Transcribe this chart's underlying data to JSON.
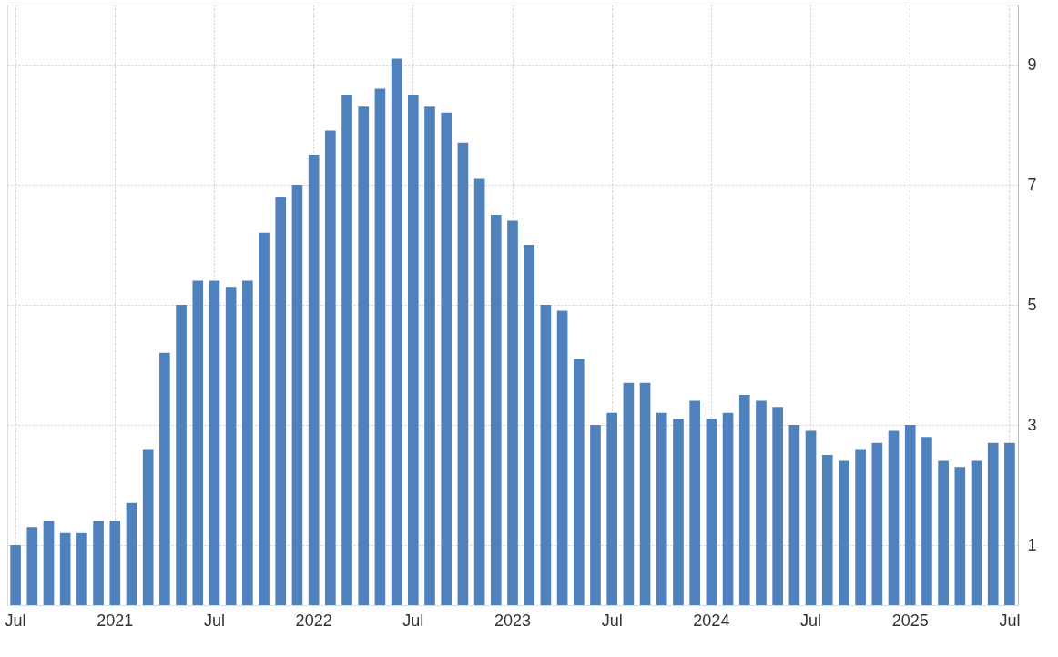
{
  "chart_data": {
    "type": "bar",
    "categories": [
      "Jul",
      null,
      null,
      null,
      null,
      null,
      "2021",
      null,
      null,
      null,
      null,
      null,
      "Jul",
      null,
      null,
      null,
      null,
      null,
      "2022",
      null,
      null,
      null,
      null,
      null,
      "Jul",
      null,
      null,
      null,
      null,
      null,
      "2023",
      null,
      null,
      null,
      null,
      null,
      "Jul",
      null,
      null,
      null,
      null,
      null,
      "2024",
      null,
      null,
      null,
      null,
      null,
      "Jul",
      null,
      null,
      null,
      null,
      null,
      "2025",
      null,
      null,
      null,
      null,
      null,
      "Jul"
    ],
    "values": [
      1.0,
      1.3,
      1.4,
      1.2,
      1.2,
      1.4,
      1.4,
      1.7,
      2.6,
      4.2,
      5.0,
      5.4,
      5.4,
      5.3,
      5.4,
      6.2,
      6.8,
      7.0,
      7.5,
      7.9,
      8.5,
      8.3,
      8.6,
      9.1,
      8.5,
      8.3,
      8.2,
      7.7,
      7.1,
      6.5,
      6.4,
      6.0,
      5.0,
      4.9,
      4.1,
      3.0,
      3.2,
      3.7,
      3.7,
      3.2,
      3.1,
      3.4,
      3.1,
      3.2,
      3.5,
      3.4,
      3.3,
      3.0,
      2.9,
      2.5,
      2.4,
      2.6,
      2.7,
      2.9,
      3.0,
      2.8,
      2.4,
      2.3,
      2.4,
      2.7,
      2.7
    ],
    "color": "#4f81bd",
    "ylim": [
      0,
      10
    ],
    "yticks": [
      1,
      3,
      5,
      7,
      9
    ],
    "grid": true
  }
}
